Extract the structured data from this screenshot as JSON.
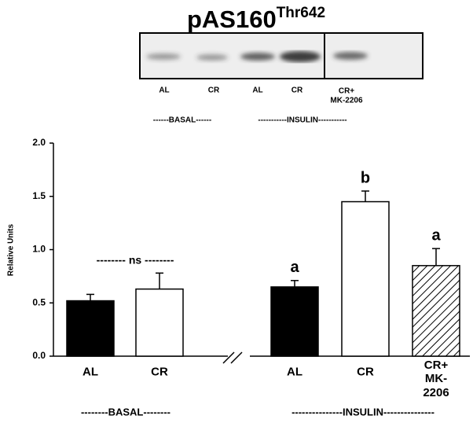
{
  "title": {
    "main": "pAS160",
    "sup": "Thr642"
  },
  "blot": {
    "lanes": [
      "AL",
      "CR",
      "AL",
      "CR",
      "CR+\nMK-2206"
    ],
    "groups": [
      "------BASAL------",
      "-----------INSULIN-----------"
    ]
  },
  "chart_data": {
    "type": "bar",
    "ylabel": "Relative Units",
    "categories": [
      "AL",
      "CR",
      "AL",
      "CR",
      "CR+\nMK-2206"
    ],
    "values": [
      0.52,
      0.63,
      0.65,
      1.45,
      0.85
    ],
    "errors": [
      0.06,
      0.15,
      0.06,
      0.1,
      0.16
    ],
    "colors": [
      "#000000",
      "#ffffff",
      "#000000",
      "#ffffff",
      "#ffffff"
    ],
    "hatched": [
      false,
      false,
      false,
      false,
      true
    ],
    "letters": [
      null,
      null,
      "a",
      "b",
      "a"
    ],
    "ns_label": "-------- ns --------",
    "group_labels": [
      "--------BASAL--------",
      "---------------INSULIN---------------"
    ],
    "axis_break": true,
    "ylim": [
      0,
      2
    ],
    "yticks": [
      {
        "value": 0,
        "label": "0.0"
      },
      {
        "value": 0.5,
        "label": "0.5"
      },
      {
        "value": 1,
        "label": "1.0"
      },
      {
        "value": 1.5,
        "label": "1.5"
      },
      {
        "value": 2,
        "label": "2.0"
      }
    ]
  }
}
